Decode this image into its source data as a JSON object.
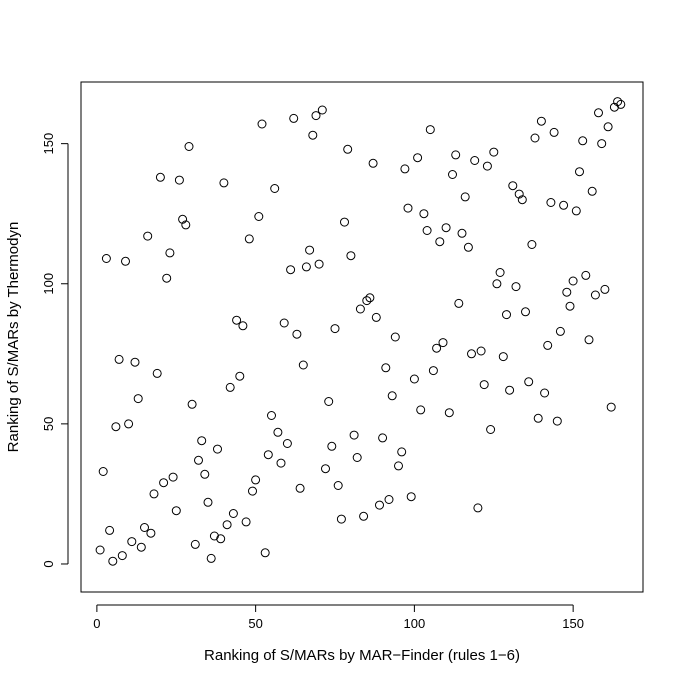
{
  "chart_data": {
    "type": "scatter",
    "title": "",
    "xlabel": "Ranking of S/MARs by MAR−Finder (rules 1−6)",
    "ylabel": "Ranking of S/MARs by Thermodyn",
    "xlim": [
      -5,
      172
    ],
    "ylim": [
      -10,
      172
    ],
    "xticks": [
      0,
      50,
      100,
      150
    ],
    "yticks": [
      0,
      50,
      100,
      150
    ],
    "xtick_labels": [
      "0",
      "50",
      "100",
      "150"
    ],
    "ytick_labels": [
      "0",
      "50",
      "100",
      "150"
    ],
    "marker": "open-circle",
    "grid": false,
    "legend": "none",
    "points": [
      [
        1,
        5
      ],
      [
        2,
        33
      ],
      [
        3,
        109
      ],
      [
        4,
        12
      ],
      [
        5,
        1
      ],
      [
        6,
        49
      ],
      [
        7,
        73
      ],
      [
        8,
        3
      ],
      [
        9,
        108
      ],
      [
        10,
        50
      ],
      [
        11,
        8
      ],
      [
        12,
        72
      ],
      [
        13,
        59
      ],
      [
        14,
        6
      ],
      [
        15,
        13
      ],
      [
        16,
        117
      ],
      [
        17,
        11
      ],
      [
        18,
        25
      ],
      [
        19,
        68
      ],
      [
        20,
        138
      ],
      [
        21,
        29
      ],
      [
        22,
        102
      ],
      [
        23,
        111
      ],
      [
        24,
        31
      ],
      [
        25,
        19
      ],
      [
        26,
        137
      ],
      [
        27,
        123
      ],
      [
        28,
        121
      ],
      [
        29,
        149
      ],
      [
        30,
        57
      ],
      [
        31,
        7
      ],
      [
        32,
        37
      ],
      [
        33,
        44
      ],
      [
        34,
        32
      ],
      [
        35,
        22
      ],
      [
        36,
        2
      ],
      [
        37,
        10
      ],
      [
        38,
        41
      ],
      [
        39,
        9
      ],
      [
        40,
        136
      ],
      [
        41,
        14
      ],
      [
        42,
        63
      ],
      [
        43,
        18
      ],
      [
        44,
        87
      ],
      [
        45,
        67
      ],
      [
        46,
        85
      ],
      [
        47,
        15
      ],
      [
        48,
        116
      ],
      [
        49,
        26
      ],
      [
        50,
        30
      ],
      [
        51,
        124
      ],
      [
        52,
        157
      ],
      [
        53,
        4
      ],
      [
        54,
        39
      ],
      [
        55,
        53
      ],
      [
        56,
        134
      ],
      [
        57,
        47
      ],
      [
        58,
        36
      ],
      [
        59,
        86
      ],
      [
        60,
        43
      ],
      [
        61,
        105
      ],
      [
        62,
        159
      ],
      [
        63,
        82
      ],
      [
        64,
        27
      ],
      [
        65,
        71
      ],
      [
        66,
        106
      ],
      [
        67,
        112
      ],
      [
        68,
        153
      ],
      [
        69,
        160
      ],
      [
        70,
        107
      ],
      [
        71,
        162
      ],
      [
        72,
        34
      ],
      [
        73,
        58
      ],
      [
        74,
        42
      ],
      [
        75,
        84
      ],
      [
        76,
        28
      ],
      [
        77,
        16
      ],
      [
        78,
        122
      ],
      [
        79,
        148
      ],
      [
        80,
        110
      ],
      [
        81,
        46
      ],
      [
        82,
        38
      ],
      [
        83,
        91
      ],
      [
        84,
        17
      ],
      [
        85,
        94
      ],
      [
        86,
        95
      ],
      [
        87,
        143
      ],
      [
        88,
        88
      ],
      [
        89,
        21
      ],
      [
        90,
        45
      ],
      [
        91,
        70
      ],
      [
        92,
        23
      ],
      [
        93,
        60
      ],
      [
        94,
        81
      ],
      [
        95,
        35
      ],
      [
        96,
        40
      ],
      [
        97,
        141
      ],
      [
        98,
        127
      ],
      [
        99,
        24
      ],
      [
        100,
        66
      ],
      [
        101,
        145
      ],
      [
        102,
        55
      ],
      [
        103,
        125
      ],
      [
        104,
        119
      ],
      [
        105,
        155
      ],
      [
        106,
        69
      ],
      [
        107,
        77
      ],
      [
        108,
        115
      ],
      [
        109,
        79
      ],
      [
        110,
        120
      ],
      [
        111,
        54
      ],
      [
        112,
        139
      ],
      [
        113,
        146
      ],
      [
        114,
        93
      ],
      [
        115,
        118
      ],
      [
        116,
        131
      ],
      [
        117,
        113
      ],
      [
        118,
        75
      ],
      [
        119,
        144
      ],
      [
        120,
        20
      ],
      [
        121,
        76
      ],
      [
        122,
        64
      ],
      [
        123,
        142
      ],
      [
        124,
        48
      ],
      [
        125,
        147
      ],
      [
        126,
        100
      ],
      [
        127,
        104
      ],
      [
        128,
        74
      ],
      [
        129,
        89
      ],
      [
        130,
        62
      ],
      [
        131,
        135
      ],
      [
        132,
        99
      ],
      [
        133,
        132
      ],
      [
        134,
        130
      ],
      [
        135,
        90
      ],
      [
        136,
        65
      ],
      [
        137,
        114
      ],
      [
        138,
        152
      ],
      [
        139,
        52
      ],
      [
        140,
        158
      ],
      [
        141,
        61
      ],
      [
        142,
        78
      ],
      [
        143,
        129
      ],
      [
        144,
        154
      ],
      [
        145,
        51
      ],
      [
        146,
        83
      ],
      [
        147,
        128
      ],
      [
        148,
        97
      ],
      [
        149,
        92
      ],
      [
        150,
        101
      ],
      [
        151,
        126
      ],
      [
        152,
        140
      ],
      [
        153,
        151
      ],
      [
        154,
        103
      ],
      [
        155,
        80
      ],
      [
        156,
        133
      ],
      [
        157,
        96
      ],
      [
        158,
        161
      ],
      [
        159,
        150
      ],
      [
        160,
        98
      ],
      [
        161,
        156
      ],
      [
        162,
        56
      ],
      [
        163,
        163
      ],
      [
        164,
        165
      ],
      [
        165,
        164
      ]
    ]
  }
}
